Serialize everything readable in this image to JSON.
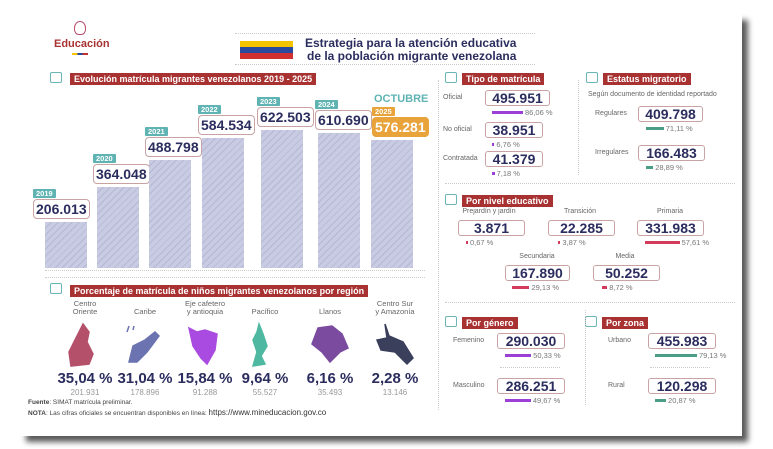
{
  "logo": {
    "text": "Educación"
  },
  "title": {
    "line1": "Estrategia para la atención educativa",
    "line2": "de la población migrante venezolana"
  },
  "evolucion": {
    "header": "Evolución matrícula migrantes venezolanos 2019 - 2025",
    "octubre": "OCTUBRE"
  },
  "chart_data": {
    "type": "bar",
    "title": "Evolución matrícula migrantes venezolanos 2019 - 2025",
    "categories": [
      "2019",
      "2020",
      "2021",
      "2022",
      "2023",
      "2024",
      "2025"
    ],
    "values": [
      206013,
      364048,
      488798,
      584534,
      622503,
      610690,
      576281
    ],
    "labels": [
      "206.013",
      "364.048",
      "488.798",
      "584.534",
      "622.503",
      "610.690",
      "576.281"
    ],
    "highlight": "2025",
    "highlight_color": "#e8a33a",
    "bar_color": "#c8cbe2",
    "tag_color": "#5fb3b3"
  },
  "tipo": {
    "header": "Tipo de matrícula",
    "items": [
      {
        "label": "Oficial",
        "value": "495.951",
        "pct": "86,06 %",
        "share": 86.06
      },
      {
        "label": "No oficial",
        "value": "38.951",
        "pct": "6,76 %",
        "share": 6.76
      },
      {
        "label": "Contratada",
        "value": "41.379",
        "pct": "7,18 %",
        "share": 7.18
      }
    ],
    "color": "#9b3fd6"
  },
  "estatus": {
    "header": "Estatus migratorio",
    "subtitle": "Según documento de identidad reportado",
    "items": [
      {
        "label": "Regulares",
        "value": "409.798",
        "pct": "71,11 %",
        "share": 71.11
      },
      {
        "label": "Irregulares",
        "value": "166.483",
        "pct": "28,89 %",
        "share": 28.89
      }
    ],
    "color": "#4a9e88"
  },
  "nivel": {
    "header": "Por nivel educativo",
    "items": [
      {
        "label": "Prejardín y jardín",
        "value": "3.871",
        "pct": "0,67 %",
        "share": 0.67
      },
      {
        "label": "Transición",
        "value": "22.285",
        "pct": "3,87 %",
        "share": 3.87
      },
      {
        "label": "Primaria",
        "value": "331.983",
        "pct": "57,61 %",
        "share": 57.61
      },
      {
        "label": "Secundaria",
        "value": "167.890",
        "pct": "29,13 %",
        "share": 29.13
      },
      {
        "label": "Media",
        "value": "50.252",
        "pct": "8,72 %",
        "share": 8.72
      }
    ],
    "color": "#d23c5a"
  },
  "genero": {
    "header": "Por género",
    "items": [
      {
        "label": "Femenino",
        "value": "290.030",
        "pct": "50,33 %",
        "share": 50.33
      },
      {
        "label": "Masculino",
        "value": "286.251",
        "pct": "49,67 %",
        "share": 49.67
      }
    ],
    "color": "#9b3fd6"
  },
  "zona": {
    "header": "Por zona",
    "items": [
      {
        "label": "Urbano",
        "value": "455.983",
        "pct": "79,13 %",
        "share": 79.13
      },
      {
        "label": "Rural",
        "value": "120.298",
        "pct": "20,87 %",
        "share": 20.87
      }
    ],
    "color": "#4a9e88"
  },
  "region": {
    "header": "Porcentaje de matrícula de niños migrantes venezolanos por región",
    "items": [
      {
        "name1": "Centro",
        "name2": "Oriente",
        "pct": "35,04 %",
        "count": "201.931",
        "color": "#b5506b"
      },
      {
        "name1": "",
        "name2": "Caribe",
        "pct": "31,04 %",
        "count": "178.896",
        "color": "#6b73b0"
      },
      {
        "name1": "Eje cafetero",
        "name2": "y antioquia",
        "pct": "15,84 %",
        "count": "91.288",
        "color": "#a94be0"
      },
      {
        "name1": "",
        "name2": "Pacífico",
        "pct": "9,64 %",
        "count": "55.527",
        "color": "#4fb8a0"
      },
      {
        "name1": "",
        "name2": "Llanos",
        "pct": "6,16 %",
        "count": "35.493",
        "color": "#7a4b9e"
      },
      {
        "name1": "Centro Sur",
        "name2": "y Amazonía",
        "pct": "2,28 %",
        "count": "13.146",
        "color": "#3a3f5c"
      }
    ]
  },
  "footer": {
    "fuente_label": "Fuente",
    "fuente": ": SIMAT matrícula preliminar.",
    "nota_label": "NOTA",
    "nota": ": Las cifras oficiales se encuentran disponibles en línea: ",
    "url": "https://www.mineducacion.gov.co"
  }
}
